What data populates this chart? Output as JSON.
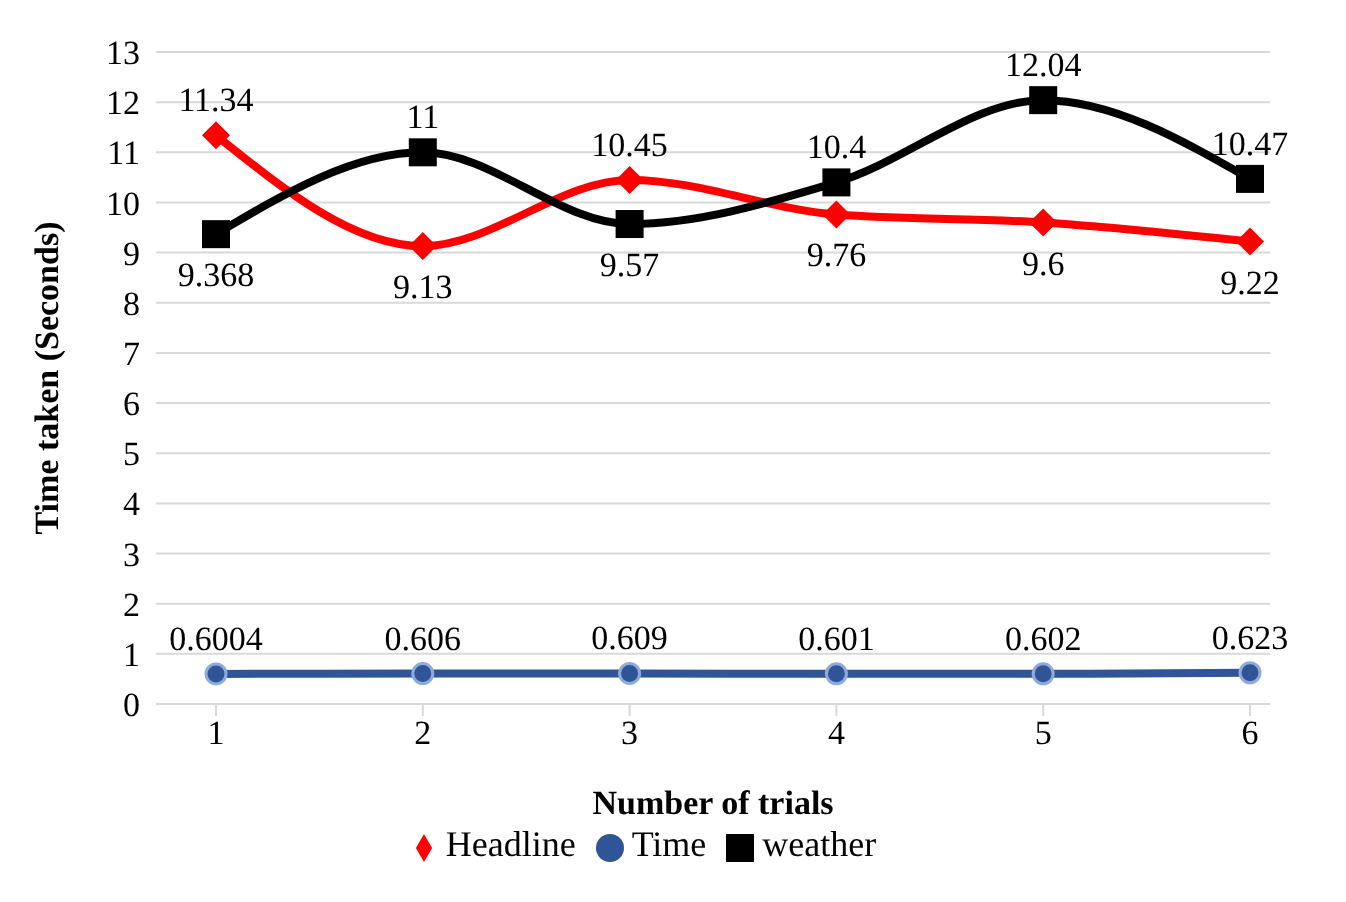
{
  "chart_data": {
    "type": "line",
    "categories": [
      "1",
      "2",
      "3",
      "4",
      "5",
      "6"
    ],
    "xlabel": "Number of trials",
    "ylabel": "Time taken (Seconds)",
    "ylim": [
      0,
      13
    ],
    "yticks": [
      0,
      1,
      2,
      3,
      4,
      5,
      6,
      7,
      8,
      9,
      10,
      11,
      12,
      13
    ],
    "grid": "y",
    "legend": "bottom",
    "data_labels": true,
    "line_style": "solid",
    "series": [
      {
        "name": "Headline",
        "color": "#ff0000",
        "marker": "diamond",
        "values": [
          11.34,
          9.13,
          10.45,
          9.76,
          9.6,
          9.22
        ]
      },
      {
        "name": "Time",
        "color": "#2f5597",
        "marker": "circle",
        "values": [
          0.6004,
          0.606,
          0.609,
          0.601,
          0.602,
          0.623
        ]
      },
      {
        "name": "weather",
        "color": "#000000",
        "marker": "square",
        "values": [
          9.368,
          11,
          9.57,
          10.4,
          12.04,
          10.47
        ]
      }
    ]
  }
}
